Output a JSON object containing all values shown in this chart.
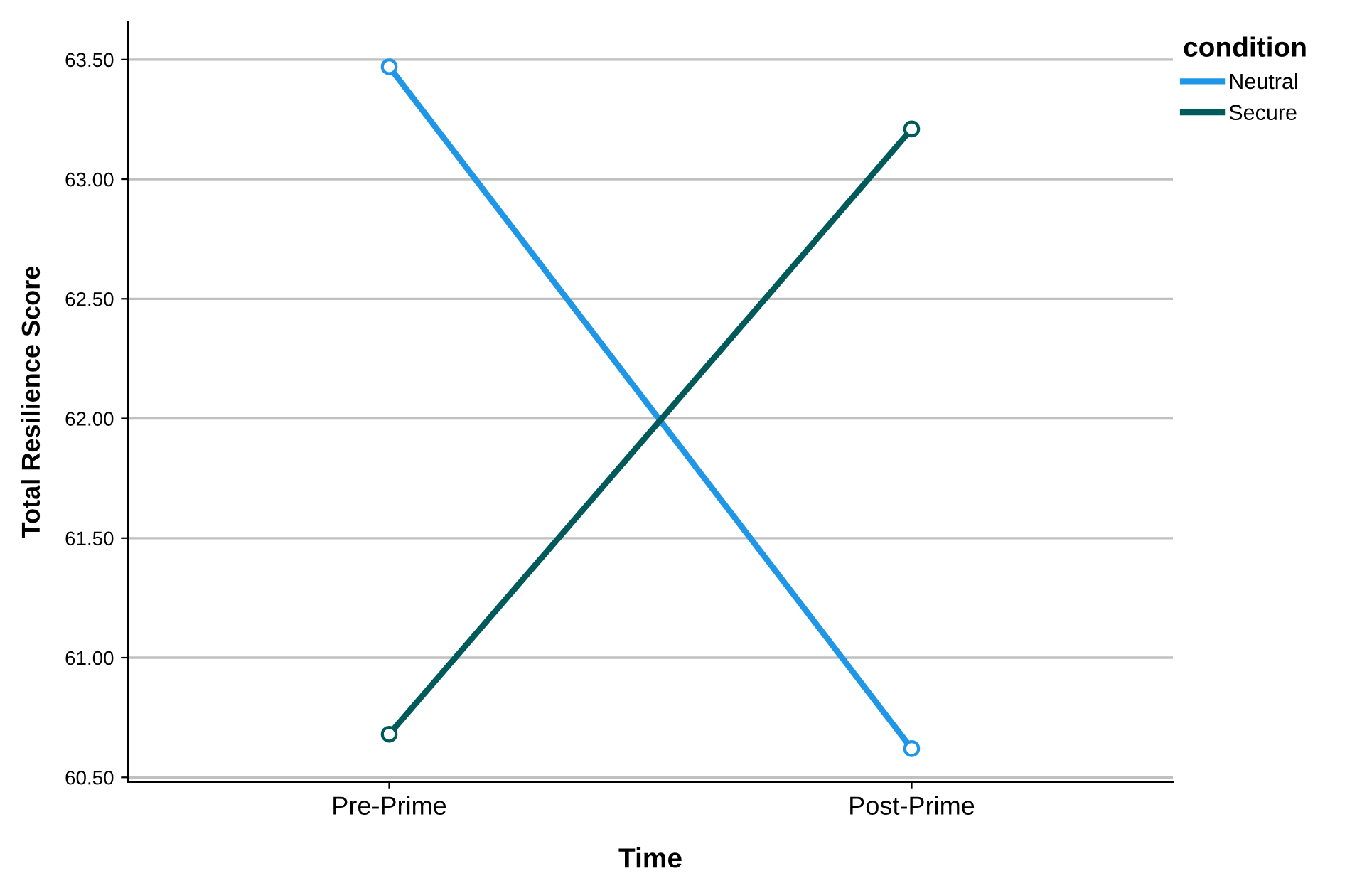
{
  "chart_data": {
    "type": "line",
    "xlabel": "Time",
    "ylabel": "Total Resilience Score",
    "legend_title": "condition",
    "categories": [
      "Pre-Prime",
      "Post-Prime"
    ],
    "series": [
      {
        "name": "Neutral",
        "color": "#1f97e6",
        "values": [
          63.47,
          60.62
        ]
      },
      {
        "name": "Secure",
        "color": "#005a5a",
        "values": [
          60.68,
          63.21
        ]
      }
    ],
    "ylim": [
      60.48,
      63.66
    ],
    "yticks": [
      {
        "value": 60.5,
        "label": "60.50"
      },
      {
        "value": 61.0,
        "label": "61.00"
      },
      {
        "value": 61.5,
        "label": "61.50"
      },
      {
        "value": 62.0,
        "label": "62.00"
      },
      {
        "value": 62.5,
        "label": "62.50"
      },
      {
        "value": 63.0,
        "label": "63.00"
      },
      {
        "value": 63.5,
        "label": "63.50"
      }
    ],
    "grid": "y",
    "legend": "top right",
    "marker": "circle",
    "line_style": "solid"
  }
}
